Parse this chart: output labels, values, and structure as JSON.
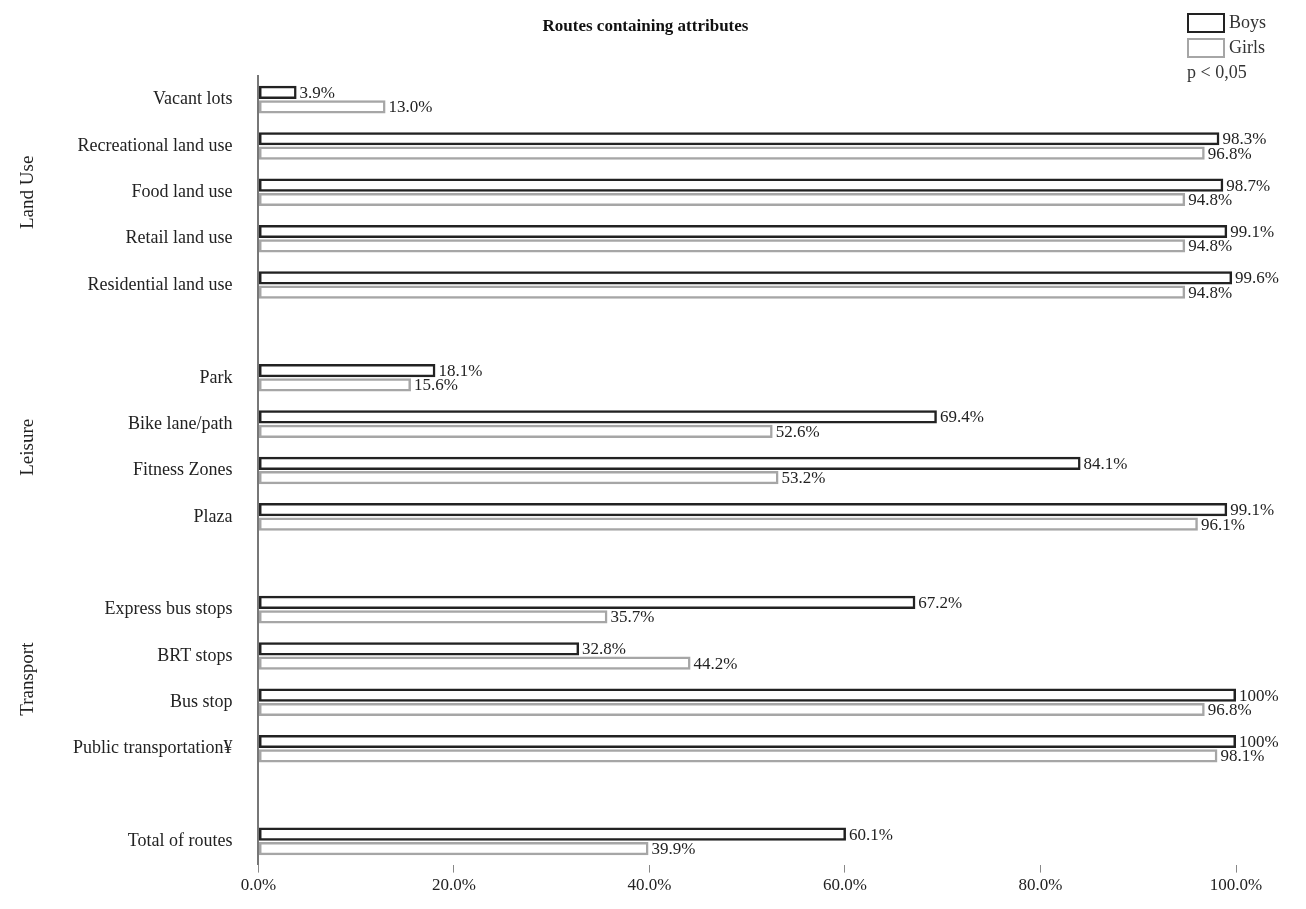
{
  "chart_data": {
    "type": "bar",
    "title": "Routes containing attributes",
    "orientation": "horizontal",
    "categories": [
      "Vacant lots",
      "Recreational land use",
      "Food land use",
      "Retail land use",
      "Residential land use",
      null,
      "Park",
      "Bike lane/path",
      "Fitness Zones",
      "Plaza",
      null,
      "Express bus stops",
      "BRT stops",
      "Bus stop",
      "Public transportation¥",
      null,
      "Total of routes"
    ],
    "series": [
      {
        "name": "Boys",
        "color": "#222222",
        "values": [
          3.9,
          98.3,
          98.7,
          99.1,
          99.6,
          null,
          18.1,
          69.4,
          84.1,
          99.1,
          null,
          67.2,
          32.8,
          100,
          100,
          null,
          60.1
        ],
        "value_labels": [
          "3.9%",
          "98.3%",
          "98.7%",
          "99.1%",
          "99.6%",
          null,
          "18.1%",
          "69.4%",
          "84.1%",
          "99.1%",
          null,
          "67.2%",
          "32.8%",
          "100%",
          "100%",
          null,
          "60.1%"
        ]
      },
      {
        "name": "Girls",
        "color": "#a6a6a6",
        "values": [
          13.0,
          96.8,
          94.8,
          94.8,
          94.8,
          null,
          15.6,
          52.6,
          53.2,
          96.1,
          null,
          35.7,
          44.2,
          96.8,
          98.1,
          null,
          39.9
        ],
        "value_labels": [
          "13.0%",
          "96.8%",
          "94.8%",
          "94.8%",
          "94.8%",
          null,
          "15.6%",
          "52.6%",
          "53.2%",
          "96.1%",
          null,
          "35.7%",
          "44.2%",
          "96.8%",
          "98.1%",
          null,
          "39.9%"
        ]
      }
    ],
    "xlim": [
      0,
      100
    ],
    "xticks": [
      {
        "value": 0,
        "label": "0.0%"
      },
      {
        "value": 20,
        "label": "20.0%"
      },
      {
        "value": 40,
        "label": "40.0%"
      },
      {
        "value": 60,
        "label": "60.0%"
      },
      {
        "value": 80,
        "label": "80.0%"
      },
      {
        "value": 100,
        "label": "100.0%"
      }
    ],
    "legend": "top right",
    "annotations": [
      "Land Use",
      "Leisure",
      "Transport",
      "p < 0,05"
    ]
  }
}
